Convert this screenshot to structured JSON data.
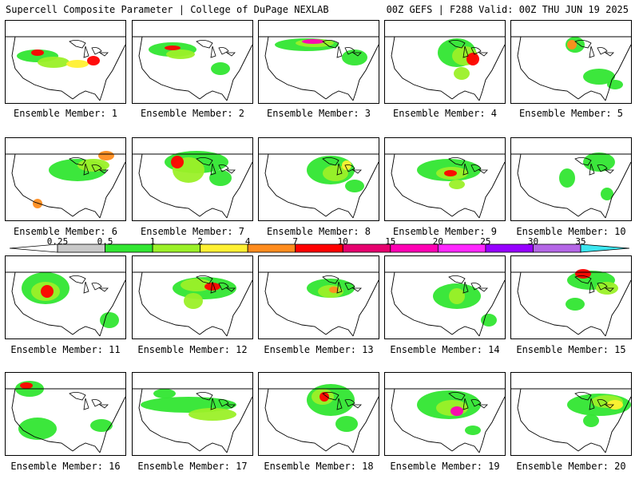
{
  "header": {
    "title_left": "Supercell Composite Parameter | College of DuPage NEXLAB",
    "title_right": "00Z GEFS | F288 Valid: 00Z THU JUN 19 2025"
  },
  "panels": [
    {
      "label": "Ensemble Member: 1"
    },
    {
      "label": "Ensemble Member: 2"
    },
    {
      "label": "Ensemble Member: 3"
    },
    {
      "label": "Ensemble Member: 4"
    },
    {
      "label": "Ensemble Member: 5"
    },
    {
      "label": "Ensemble Member: 6"
    },
    {
      "label": "Ensemble Member: 7"
    },
    {
      "label": "Ensemble Member: 8"
    },
    {
      "label": "Ensemble Member: 9"
    },
    {
      "label": "Ensemble Member: 10"
    },
    {
      "label": "Ensemble Member: 11"
    },
    {
      "label": "Ensemble Member: 12"
    },
    {
      "label": "Ensemble Member: 13"
    },
    {
      "label": "Ensemble Member: 14"
    },
    {
      "label": "Ensemble Member: 15"
    },
    {
      "label": "Ensemble Member: 16"
    },
    {
      "label": "Ensemble Member: 17"
    },
    {
      "label": "Ensemble Member: 18"
    },
    {
      "label": "Ensemble Member: 19"
    },
    {
      "label": "Ensemble Member: 20"
    }
  ],
  "colorbar": {
    "ticks": [
      "0.25",
      "0.5",
      "1",
      "2",
      "4",
      "7",
      "10",
      "15",
      "20",
      "25",
      "30",
      "35"
    ],
    "colors": [
      "#c8c8c8",
      "#32e632",
      "#9bf028",
      "#fff032",
      "#ff8c1e",
      "#ff0000",
      "#e6006e",
      "#ff00b4",
      "#ff28ff",
      "#9600ff",
      "#b466e6",
      "#3ce6f0"
    ]
  }
}
